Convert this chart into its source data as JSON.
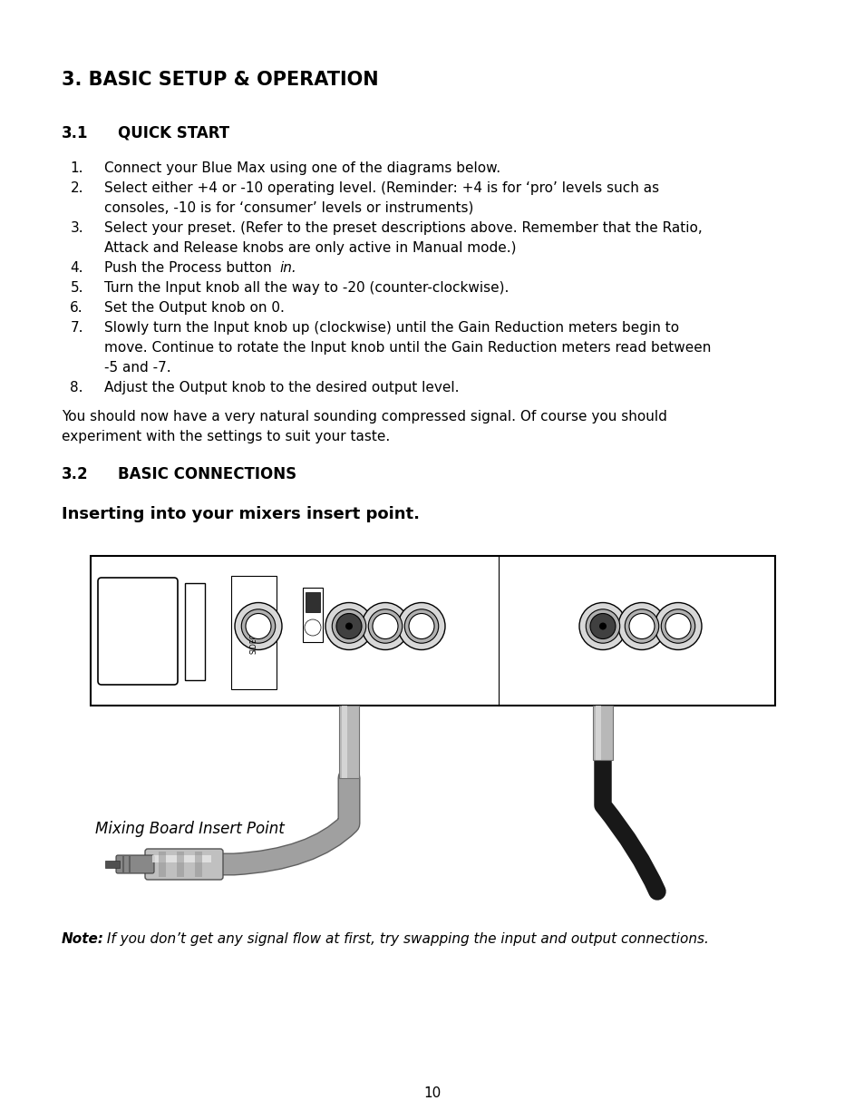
{
  "title": "3. BASIC SETUP & OPERATION",
  "section1_num": "3.1",
  "section1_title": "QUICK START",
  "paragraph": "You should now have a very natural sounding compressed signal. Of course you should experiment with the settings to suit your taste.",
  "section2_num": "3.2",
  "section2_title": "BASIC CONNECTIONS",
  "subsection_title": "Inserting into your mixers insert point.",
  "note_bold": "Note:",
  "note_rest": " If you don’t get any signal flow at first, try swapping the input and output connections.",
  "mixing_board_label": "Mixing Board Insert Point",
  "page_number": "10",
  "bg_color": "#ffffff",
  "text_color": "#000000"
}
